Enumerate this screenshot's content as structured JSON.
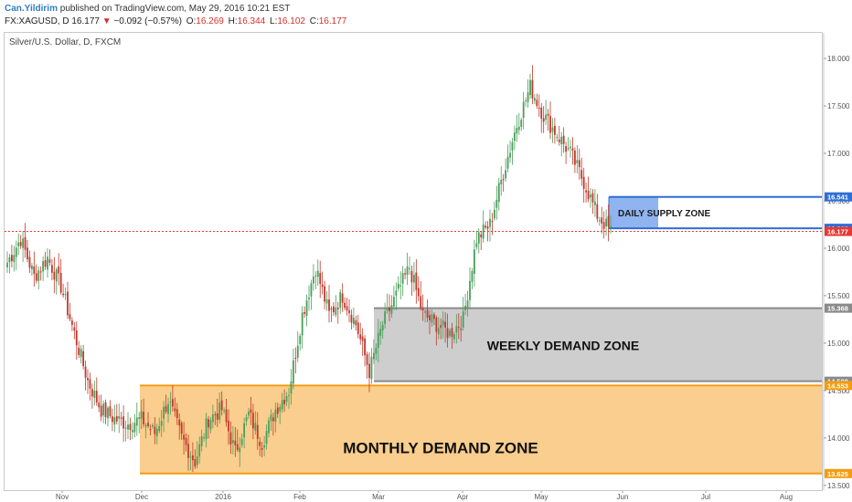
{
  "header": {
    "author": "Can.Yildirim",
    "published": " published on TradingView.com, May 29, 2016 10:21 EST",
    "symbol": "FX:XAGUSD, D",
    "last": "16.177",
    "change_arrow": "▼",
    "change": "−0.092 (−0.57%)",
    "o_label": "O:",
    "o": "16.269",
    "h_label": "H:",
    "h": "16.344",
    "l_label": "L:",
    "l": "16.102",
    "c_label": "C:",
    "c": "16.177"
  },
  "symbol_description": "Silver/U.S. Dollar, D, FXCM",
  "colors": {
    "up": "#4a9e5c",
    "down": "#c0392b",
    "monthly_zone": "#f9c57a",
    "monthly_line": "#f39c12",
    "weekly_zone": "#c9c9c9",
    "weekly_line": "#8a8a8a",
    "supply_fill": "#8fb4ef",
    "supply_line": "#2f6fd6",
    "last_price": "#e53935"
  },
  "chart_data": {
    "type": "candlestick",
    "y_axis": {
      "ticks": [
        "18.000",
        "17.500",
        "17.000",
        "16.500",
        "16.000",
        "15.500",
        "15.000",
        "14.500",
        "14.000",
        "13.500"
      ],
      "range": [
        13.45,
        18.27
      ]
    },
    "x_axis": {
      "ticks": [
        "Nov",
        "Dec",
        "2016",
        "Feb",
        "Mar",
        "Apr",
        "May",
        "Jun",
        "Jul",
        "Aug"
      ]
    },
    "price_labels": [
      {
        "value": "16.541",
        "color": "#2f6fd6"
      },
      {
        "value": "16.210",
        "color": "#2f6fd6"
      },
      {
        "value": "16.177",
        "color": "#e53935"
      },
      {
        "value": "15.368",
        "color": "#8a8a8a"
      },
      {
        "value": "14.598",
        "color": "#8a8a8a"
      },
      {
        "value": "14.553",
        "color": "#f39c12"
      },
      {
        "value": "13.625",
        "color": "#f39c12"
      }
    ],
    "zones": {
      "supply": {
        "label": "DAILY SUPPLY ZONE",
        "top": 16.541,
        "bottom": 16.21
      },
      "weekly": {
        "label": "WEEKLY DEMAND ZONE",
        "top": 15.368,
        "bottom": 14.598
      },
      "monthly": {
        "label": "MONTHLY DEMAND ZONE",
        "top": 14.553,
        "bottom": 13.625
      }
    },
    "last_price": 16.177,
    "waypoints": [
      [
        0,
        15.85
      ],
      [
        6,
        16.1
      ],
      [
        12,
        15.7
      ],
      [
        18,
        15.9
      ],
      [
        24,
        15.6
      ],
      [
        30,
        15.1
      ],
      [
        36,
        14.6
      ],
      [
        42,
        14.3
      ],
      [
        48,
        14.2
      ],
      [
        54,
        14.15
      ],
      [
        60,
        14.2
      ],
      [
        66,
        14.05
      ],
      [
        72,
        14.4
      ],
      [
        78,
        14.0
      ],
      [
        84,
        13.75
      ],
      [
        90,
        14.2
      ],
      [
        96,
        14.3
      ],
      [
        102,
        13.85
      ],
      [
        108,
        14.25
      ],
      [
        114,
        13.95
      ],
      [
        120,
        14.3
      ],
      [
        126,
        14.5
      ],
      [
        132,
        15.3
      ],
      [
        138,
        15.8
      ],
      [
        144,
        15.3
      ],
      [
        150,
        15.5
      ],
      [
        156,
        15.2
      ],
      [
        162,
        14.7
      ],
      [
        168,
        15.2
      ],
      [
        174,
        15.5
      ],
      [
        180,
        15.8
      ],
      [
        186,
        15.3
      ],
      [
        192,
        15.2
      ],
      [
        198,
        15.1
      ],
      [
        204,
        15.25
      ],
      [
        210,
        16.1
      ],
      [
        216,
        16.25
      ],
      [
        222,
        16.8
      ],
      [
        228,
        17.3
      ],
      [
        234,
        17.7
      ],
      [
        240,
        17.4
      ],
      [
        246,
        17.2
      ],
      [
        252,
        17.0
      ],
      [
        258,
        16.7
      ],
      [
        264,
        16.35
      ],
      [
        270,
        16.18
      ]
    ]
  }
}
